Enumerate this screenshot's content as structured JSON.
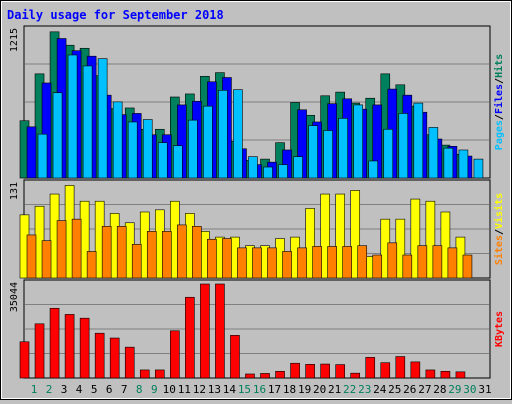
{
  "colors": {
    "background": "#c0c0c0",
    "hits": "#00805c",
    "files": "#0000ff",
    "pages": "#00c0ff",
    "visits": "#ffff00",
    "sites": "#ff8000",
    "kbytes": "#ff0000",
    "title": "#0000ff",
    "weekend_day": "#00805c",
    "weekday": "#000000"
  },
  "chart_data": {
    "type": "bar",
    "title": "Daily usage for September 2018",
    "categories": [
      "1",
      "2",
      "3",
      "4",
      "5",
      "6",
      "7",
      "8",
      "9",
      "10",
      "11",
      "12",
      "13",
      "14",
      "15",
      "16",
      "17",
      "18",
      "19",
      "20",
      "21",
      "22",
      "23",
      "24",
      "25",
      "26",
      "27",
      "28",
      "29",
      "30",
      "31"
    ],
    "weekend_days": [
      "1",
      "2",
      "8",
      "9",
      "15",
      "16",
      "22",
      "23",
      "29",
      "30"
    ],
    "panels": [
      {
        "id": "hits-files-pages",
        "scale_label": "1215",
        "ylim": [
          0,
          1215
        ],
        "ylabel_parts": [
          "Pages",
          "Files",
          "Hits"
        ],
        "series": [
          {
            "name": "Hits",
            "values": [
              470,
              855,
              1200,
              1090,
              1065,
              840,
              570,
              575,
              400,
              400,
              665,
              690,
              835,
              865,
              300,
              145,
              155,
              290,
              620,
              515,
              675,
              705,
              615,
              655,
              855,
              765,
              590,
              355,
              270,
              195,
              0
            ]
          },
          {
            "name": "Files",
            "values": [
              420,
              780,
              1145,
              1045,
              1000,
              680,
              520,
              530,
              355,
              355,
              600,
              630,
              790,
              825,
              240,
              110,
              130,
              230,
              560,
              460,
              610,
              650,
              565,
              600,
              730,
              680,
              540,
              320,
              260,
              180,
              0
            ]
          },
          {
            "name": "Pages",
            "values": [
              360,
              700,
              1010,
              920,
              980,
              625,
              460,
              480,
              290,
              265,
              475,
              590,
              720,
              725,
              175,
              90,
              110,
              175,
              430,
              390,
              490,
              600,
              140,
              400,
              530,
              615,
              415,
              245,
              230,
              155,
              0
            ]
          }
        ]
      },
      {
        "id": "visits-sites",
        "scale_label": "131",
        "ylim": [
          0,
          131
        ],
        "ylabel_parts": [
          "Sites",
          "Visits"
        ],
        "series": [
          {
            "name": "Visits",
            "values": [
              88,
              100,
              117,
              129,
              107,
              107,
              90,
              77,
              92,
              95,
              107,
              90,
              65,
              57,
              57,
              45,
              45,
              55,
              57,
              97,
              117,
              117,
              122,
              30,
              82,
              82,
              110,
              107,
              92,
              57,
              0
            ]
          },
          {
            "name": "Sites",
            "values": [
              60,
              52,
              80,
              82,
              37,
              72,
              72,
              47,
              65,
              65,
              74,
              72,
              54,
              55,
              42,
              42,
              42,
              37,
              42,
              44,
              44,
              44,
              45,
              32,
              49,
              32,
              45,
              45,
              42,
              32,
              0
            ]
          }
        ]
      },
      {
        "id": "kbytes",
        "scale_label": "35044",
        "ylim": [
          0,
          35044
        ],
        "ylabel_parts": [
          "KBytes"
        ],
        "series": [
          {
            "name": "KBytes",
            "values": [
              13500,
              20200,
              26000,
              23700,
              22300,
              16700,
              14900,
              11500,
              3000,
              3000,
              17600,
              30100,
              35044,
              35044,
              15900,
              1500,
              1700,
              2500,
              5500,
              5100,
              5200,
              5000,
              1800,
              7700,
              5700,
              8000,
              6000,
              3000,
              2500,
              2300,
              0
            ]
          }
        ]
      }
    ]
  }
}
